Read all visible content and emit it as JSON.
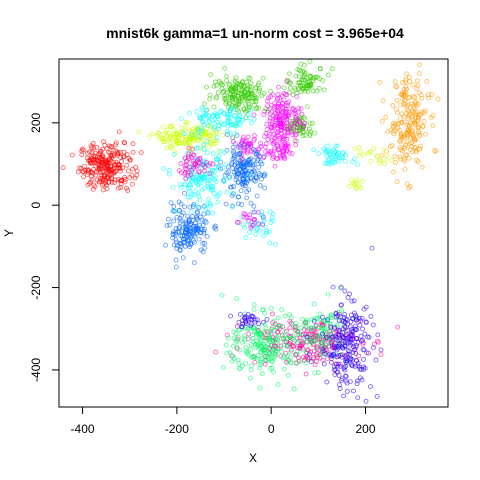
{
  "chart_data": {
    "type": "scatter",
    "title": "mnist6k gamma=1 un-norm cost = 3.965e+04",
    "xlabel": "X",
    "ylabel": "Y",
    "xlim": [
      -450,
      375
    ],
    "ylim": [
      -490,
      355
    ],
    "x_ticks": [
      -400,
      -200,
      0,
      200
    ],
    "y_ticks": [
      -400,
      -200,
      0,
      200
    ],
    "x_tick_labels": [
      "-400",
      "-200",
      "0",
      "200"
    ],
    "y_tick_labels": [
      "-400",
      "-200",
      "0",
      "200"
    ],
    "grid": false,
    "legend": "none",
    "marker": "open-circle",
    "clusters": [
      {
        "color": "#ff0000",
        "center": [
          -350,
          95
        ],
        "spread": [
          28,
          28
        ],
        "count": 240
      },
      {
        "color": "#ff9900",
        "center": [
          290,
          200
        ],
        "spread": [
          22,
          60
        ],
        "count": 200
      },
      {
        "color": "#0066ff",
        "center": [
          -175,
          -60
        ],
        "spread": [
          22,
          30
        ],
        "count": 150
      },
      {
        "color": "#0066ff",
        "center": [
          -60,
          80
        ],
        "spread": [
          22,
          32
        ],
        "count": 160
      },
      {
        "color": "#33cc00",
        "center": [
          -65,
          270
        ],
        "spread": [
          30,
          22
        ],
        "count": 170
      },
      {
        "color": "#33cc00",
        "center": [
          75,
          300
        ],
        "spread": [
          22,
          18
        ],
        "count": 80
      },
      {
        "color": "#33cc00",
        "center": [
          60,
          190
        ],
        "spread": [
          15,
          15
        ],
        "count": 60
      },
      {
        "color": "#ccff00",
        "center": [
          -175,
          165
        ],
        "spread": [
          35,
          14
        ],
        "count": 150
      },
      {
        "color": "#00ffff",
        "center": [
          -145,
          60
        ],
        "spread": [
          28,
          38
        ],
        "count": 140
      },
      {
        "color": "#00ffff",
        "center": [
          -110,
          205
        ],
        "spread": [
          35,
          18
        ],
        "count": 90
      },
      {
        "color": "#00ffff",
        "center": [
          135,
          120
        ],
        "spread": [
          20,
          10
        ],
        "count": 45
      },
      {
        "color": "#ff00ff",
        "center": [
          25,
          210
        ],
        "spread": [
          20,
          35
        ],
        "count": 170
      },
      {
        "color": "#ff00ff",
        "center": [
          -50,
          140
        ],
        "spread": [
          10,
          12
        ],
        "count": 30
      },
      {
        "color": "#ff00ff",
        "center": [
          15,
          130
        ],
        "spread": [
          20,
          12
        ],
        "count": 50
      },
      {
        "color": "#ff00cc",
        "center": [
          -165,
          100
        ],
        "spread": [
          20,
          15
        ],
        "count": 50
      },
      {
        "color": "#ff0099",
        "center": [
          70,
          -330
        ],
        "spread": [
          60,
          28
        ],
        "count": 230
      },
      {
        "color": "#00ff66",
        "center": [
          -10,
          -340
        ],
        "spread": [
          40,
          38
        ],
        "count": 210
      },
      {
        "color": "#00ff66",
        "center": [
          110,
          -310
        ],
        "spread": [
          25,
          40
        ],
        "count": 90
      },
      {
        "color": "#3300ff",
        "center": [
          160,
          -340
        ],
        "spread": [
          28,
          55
        ],
        "count": 220
      },
      {
        "color": "#3300ff",
        "center": [
          -50,
          -280
        ],
        "spread": [
          15,
          8
        ],
        "count": 30
      },
      {
        "color": "#00ffff",
        "center": [
          -30,
          -50
        ],
        "spread": [
          25,
          20
        ],
        "count": 40
      },
      {
        "color": "#ff00ff",
        "center": [
          -45,
          -35
        ],
        "spread": [
          15,
          10
        ],
        "count": 20
      },
      {
        "color": "#ccff00",
        "center": [
          220,
          120
        ],
        "spread": [
          18,
          15
        ],
        "count": 20
      },
      {
        "color": "#ccff00",
        "center": [
          180,
          50
        ],
        "spread": [
          8,
          6
        ],
        "count": 12
      }
    ]
  }
}
